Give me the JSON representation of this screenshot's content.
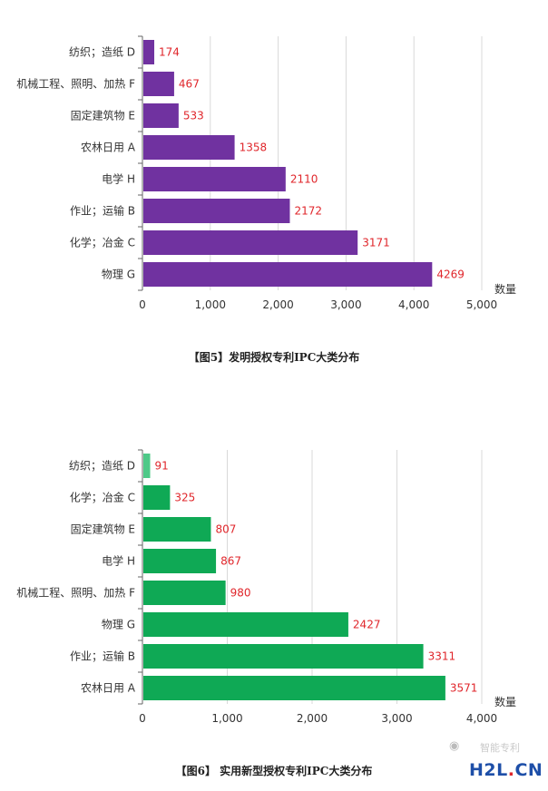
{
  "charts": [
    {
      "caption": "【图5】发明授权专利IPC大类分布",
      "chart_data": {
        "type": "bar",
        "orientation": "horizontal",
        "categories": [
          "纺织；造纸 D",
          "机械工程、照明、加热 F",
          "固定建筑物 E",
          "农林日用 A",
          "电学 H",
          "作业；运输 B",
          "化学；冶金 C",
          "物理 G"
        ],
        "values": [
          174,
          467,
          533,
          1358,
          2110,
          2172,
          3171,
          4269
        ],
        "value_labels": [
          "174",
          "467",
          "533",
          "1358",
          "2110",
          "2172",
          "3171",
          "4269"
        ],
        "xlabel": "数量",
        "xlim": [
          0,
          5000
        ],
        "xticks": [
          0,
          1000,
          2000,
          3000,
          4000,
          5000
        ],
        "xtick_labels": [
          "0",
          "1,000",
          "2,000",
          "3,000",
          "4,000",
          "5,000"
        ],
        "grid": "vertical",
        "bar_color": "#7032a0",
        "label_color": "#e0262b"
      }
    },
    {
      "caption": "【图6】 实用新型授权专利IPC大类分布",
      "chart_data": {
        "type": "bar",
        "orientation": "horizontal",
        "categories": [
          "纺织；造纸 D",
          "化学；冶金 C",
          "固定建筑物 E",
          "电学 H",
          "机械工程、照明、加热 F",
          "物理 G",
          "作业；运输 B",
          "农林日用 A"
        ],
        "values": [
          91,
          325,
          807,
          867,
          980,
          2427,
          3311,
          3571
        ],
        "value_labels": [
          "91",
          "325",
          "807",
          "867",
          "980",
          "2427",
          "3311",
          "3571"
        ],
        "xlabel": "数量",
        "xlim": [
          0,
          4000
        ],
        "xticks": [
          0,
          1000,
          2000,
          3000,
          4000
        ],
        "xtick_labels": [
          "0",
          "1,000",
          "2,000",
          "3,000",
          "4,000"
        ],
        "grid": "vertical",
        "bar_color": "#0fa955",
        "first_bar_color": "#4ec988",
        "label_color": "#e0262b"
      }
    }
  ],
  "watermark": {
    "brand_h2l": "H2L",
    "brand_dot": ".",
    "brand_cn": "CN",
    "faint_text": "智能专利"
  }
}
